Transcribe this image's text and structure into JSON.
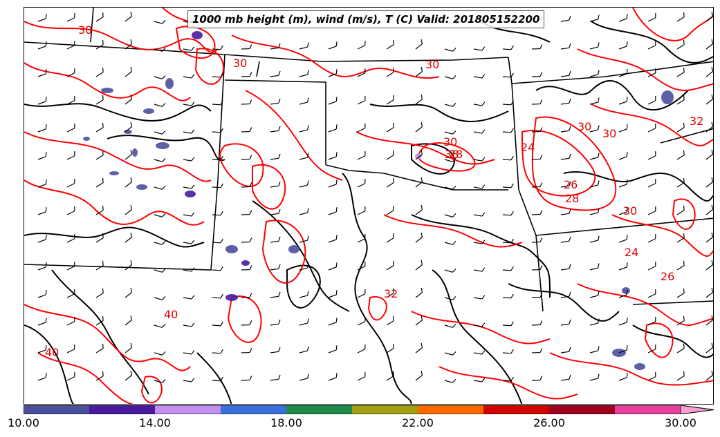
{
  "title": "1000 mb height (m), wind (m/s), T (C) Valid: 201805152200",
  "colorbar": {
    "colors": [
      "#4b4f9c",
      "#4a1a9e",
      "#c38ff0",
      "#3a6fe0",
      "#1f8a4a",
      "#a0a010",
      "#ff6a00",
      "#d40000",
      "#9e0020",
      "#e8409c",
      "#f5a0d0"
    ],
    "tick_labels": [
      "10.00",
      "14.00",
      "18.00",
      "22.00",
      "26.00",
      "30.00"
    ],
    "extend": "max"
  },
  "contour_labels": {
    "temperature": [
      "30",
      "30",
      "30",
      "30",
      "38",
      "28",
      "24",
      "26",
      "28",
      "30",
      "26",
      "32",
      "40",
      "40",
      "32",
      "30",
      "24",
      "30"
    ]
  },
  "colors": {
    "temperature_contour": "#ff0000",
    "height_contour": "#000000",
    "wind_barb": "#000000",
    "border": "#000000"
  }
}
